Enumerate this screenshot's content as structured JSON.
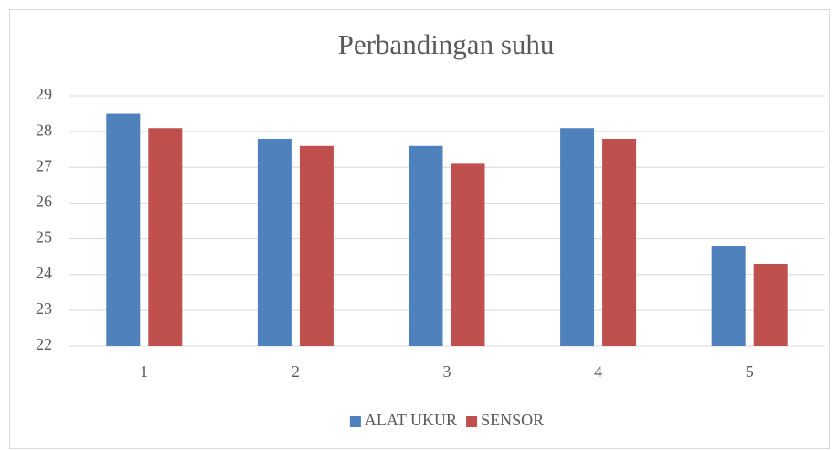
{
  "chart_data": {
    "type": "bar",
    "title": "Perbandingan suhu",
    "categories": [
      "1",
      "2",
      "3",
      "4",
      "5"
    ],
    "series": [
      {
        "name": "ALAT UKUR",
        "color": "#4f81bd",
        "values": [
          28.5,
          27.8,
          27.6,
          28.1,
          24.8
        ]
      },
      {
        "name": "SENSOR",
        "color": "#c0504d",
        "values": [
          28.1,
          27.6,
          27.1,
          27.8,
          24.3
        ]
      }
    ],
    "ylim": [
      22,
      29
    ],
    "yticks": [
      22,
      23,
      24,
      25,
      26,
      27,
      28,
      29
    ],
    "grid": true,
    "legend": "bottom"
  }
}
